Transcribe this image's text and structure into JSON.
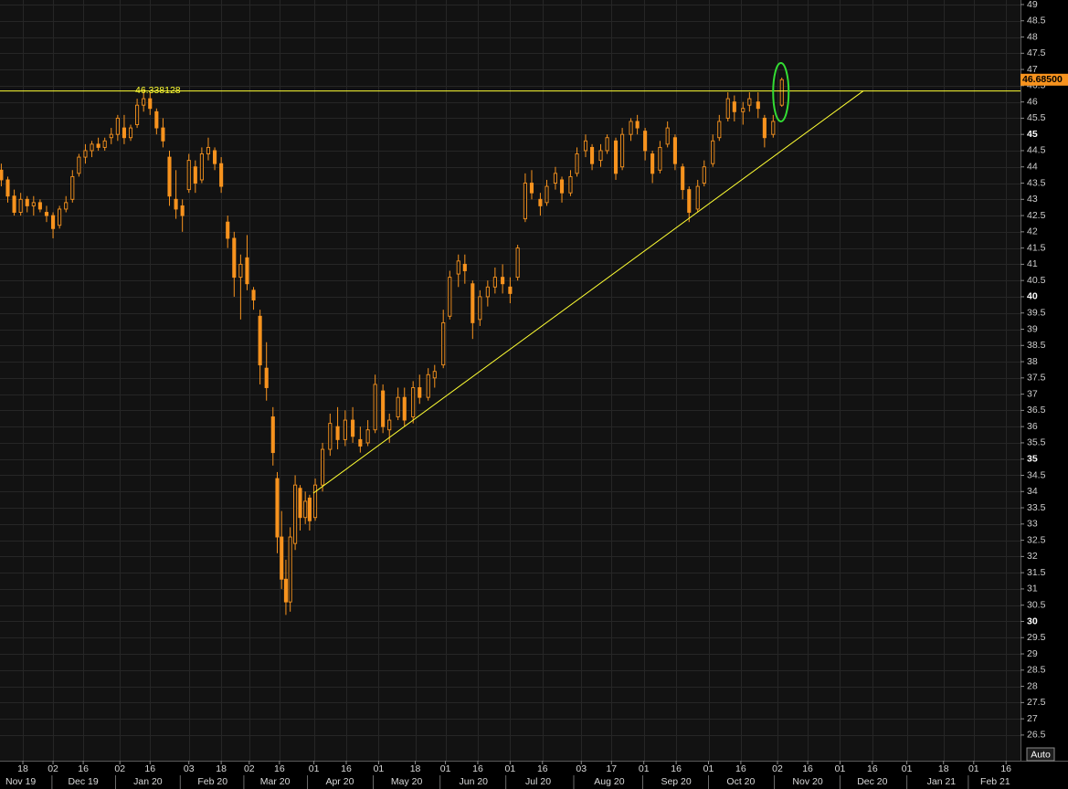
{
  "chart_data": {
    "type": "candlestick",
    "color": "#f7931e",
    "xlim": [
      6.4,
      479.7
    ],
    "ylim": [
      25.71,
      49.14
    ],
    "grid": true,
    "xticks": [
      {
        "value": 17,
        "label": "18"
      },
      {
        "value": 31,
        "label": "02"
      },
      {
        "value": 45,
        "label": "16"
      },
      {
        "value": 62,
        "label": "02"
      },
      {
        "value": 76,
        "label": "16"
      },
      {
        "value": 94,
        "label": "03"
      },
      {
        "value": 109,
        "label": "18"
      },
      {
        "value": 122,
        "label": "02"
      },
      {
        "value": 136,
        "label": "16"
      },
      {
        "value": 152,
        "label": "01"
      },
      {
        "value": 167,
        "label": "16"
      },
      {
        "value": 182,
        "label": "01"
      },
      {
        "value": 199,
        "label": "18"
      },
      {
        "value": 213,
        "label": "01"
      },
      {
        "value": 228,
        "label": "16"
      },
      {
        "value": 243,
        "label": "01"
      },
      {
        "value": 258,
        "label": "16"
      },
      {
        "value": 276,
        "label": "03"
      },
      {
        "value": 290,
        "label": "17"
      },
      {
        "value": 305,
        "label": "01"
      },
      {
        "value": 320,
        "label": "16"
      },
      {
        "value": 335,
        "label": "01"
      },
      {
        "value": 350,
        "label": "16"
      },
      {
        "value": 367,
        "label": "02"
      },
      {
        "value": 381,
        "label": "16"
      },
      {
        "value": 396,
        "label": "01"
      },
      {
        "value": 411,
        "label": "16"
      },
      {
        "value": 427,
        "label": "01"
      },
      {
        "value": 444,
        "label": "18"
      },
      {
        "value": 458,
        "label": "01"
      },
      {
        "value": 473,
        "label": "16"
      }
    ],
    "xticks_months": [
      {
        "value": 16,
        "label": "Nov 19"
      },
      {
        "value": 45,
        "label": "Dec 19"
      },
      {
        "value": 75,
        "label": "Jan 20"
      },
      {
        "value": 105,
        "label": "Feb 20"
      },
      {
        "value": 134,
        "label": "Mar 20"
      },
      {
        "value": 164,
        "label": "Apr 20"
      },
      {
        "value": 195,
        "label": "May 20"
      },
      {
        "value": 226,
        "label": "Jun 20"
      },
      {
        "value": 256,
        "label": "Jul 20"
      },
      {
        "value": 289,
        "label": "Aug 20"
      },
      {
        "value": 320,
        "label": "Sep 20"
      },
      {
        "value": 350,
        "label": "Oct 20"
      },
      {
        "value": 381,
        "label": "Nov 20"
      },
      {
        "value": 411,
        "label": "Dec 20"
      },
      {
        "value": 443,
        "label": "Jan 21"
      },
      {
        "value": 468,
        "label": "Feb 21"
      }
    ],
    "yticks": [
      26.5,
      27,
      27.5,
      28,
      28.5,
      29,
      29.5,
      30,
      30.5,
      31,
      31.5,
      32,
      32.5,
      33,
      33.5,
      34,
      34.5,
      35,
      35.5,
      36,
      36.5,
      37,
      37.5,
      38,
      38.5,
      39,
      39.5,
      40,
      40.5,
      41,
      41.5,
      42,
      42.5,
      43,
      43.5,
      44,
      44.5,
      45,
      45.5,
      46,
      46.5,
      47,
      47.5,
      48,
      48.5,
      49
    ],
    "x": [
      7,
      10,
      13,
      16,
      19,
      22,
      25,
      28,
      31,
      34,
      37,
      40,
      43,
      46,
      49,
      52,
      55,
      58,
      61,
      64,
      67,
      70,
      73,
      76,
      79,
      82,
      85,
      88,
      91,
      94,
      97,
      100,
      103,
      106,
      109,
      112,
      115,
      118,
      121,
      124,
      127,
      130,
      133,
      135,
      137,
      139,
      141,
      143.3,
      145.6,
      148,
      150,
      152.6,
      156,
      159.5,
      163,
      166.5,
      170,
      173.5,
      177,
      180.4,
      184,
      187,
      191,
      194,
      198,
      201,
      205,
      208,
      212,
      215,
      219,
      222,
      225.6,
      229,
      232.6,
      236,
      239.5,
      243,
      246.5,
      250,
      253,
      257,
      260,
      264,
      267,
      271,
      274,
      278,
      281,
      285,
      288,
      292,
      295,
      299,
      302,
      305.6,
      309,
      312.5,
      316,
      319.5,
      323,
      326,
      330,
      333,
      337,
      340,
      344,
      347,
      351,
      354,
      358,
      361,
      365,
      369
    ],
    "open": [
      43.9,
      43.6,
      43.1,
      42.6,
      43.0,
      42.8,
      42.9,
      42.6,
      42.5,
      42.2,
      42.7,
      43.0,
      43.8,
      44.3,
      44.5,
      44.7,
      44.6,
      44.9,
      45.0,
      45.2,
      44.9,
      45.3,
      45.9,
      46.1,
      45.7,
      45.2,
      44.3,
      43.0,
      42.8,
      43.3,
      44.0,
      43.6,
      44.4,
      44.5,
      44.1,
      42.3,
      41.8,
      40.6,
      41.2,
      40.2,
      39.4,
      37.8,
      36.3,
      34.4,
      32.6,
      31.3,
      30.6,
      32.4,
      34.1,
      33.2,
      33.8,
      33.2,
      34.2,
      35.3,
      36.0,
      35.6,
      36.2,
      35.6,
      35.5,
      35.9,
      37.1,
      35.9,
      36.3,
      36.9,
      36.3,
      37.2,
      36.9,
      37.5,
      37.9,
      39.4,
      40.7,
      41.0,
      40.4,
      39.3,
      40.0,
      40.3,
      40.6,
      40.3,
      40.6,
      42.4,
      43.5,
      43.0,
      42.9,
      43.5,
      43.6,
      43.2,
      43.8,
      44.5,
      44.6,
      44.2,
      44.5,
      44.8,
      44.0,
      45.0,
      45.4,
      45.1,
      44.4,
      43.9,
      44.7,
      44.9,
      44.0,
      43.3,
      42.7,
      43.5,
      44.1,
      44.9,
      45.5,
      46.0,
      45.7,
      45.9,
      46.0,
      45.5,
      45.0,
      45.9
    ],
    "high": [
      44.1,
      43.7,
      43.3,
      43.2,
      43.1,
      43.1,
      43.0,
      42.8,
      42.6,
      42.8,
      43.1,
      43.9,
      44.4,
      44.7,
      44.8,
      44.9,
      44.9,
      45.2,
      45.6,
      45.6,
      45.3,
      46.1,
      46.4,
      46.3,
      45.8,
      45.5,
      44.5,
      43.9,
      43.0,
      44.4,
      44.2,
      44.6,
      44.9,
      44.6,
      44.3,
      42.5,
      42.0,
      41.3,
      41.9,
      40.3,
      39.6,
      38.6,
      36.6,
      34.6,
      33.4,
      31.9,
      32.9,
      34.5,
      34.2,
      34.0,
      33.9,
      34.4,
      35.5,
      36.4,
      36.6,
      36.5,
      36.6,
      36.0,
      36.2,
      37.6,
      37.3,
      36.4,
      37.2,
      37.2,
      37.4,
      37.6,
      37.8,
      37.9,
      39.6,
      40.8,
      41.3,
      41.3,
      40.5,
      40.2,
      40.5,
      40.9,
      41.0,
      40.6,
      41.6,
      43.8,
      43.9,
      43.2,
      43.6,
      44.0,
      43.7,
      43.9,
      44.6,
      45.0,
      44.7,
      44.7,
      45.0,
      44.9,
      45.2,
      45.5,
      45.6,
      45.2,
      44.5,
      44.8,
      45.4,
      45.0,
      44.1,
      43.4,
      43.6,
      44.2,
      45.0,
      45.6,
      46.3,
      46.2,
      46.0,
      46.3,
      46.3,
      45.6,
      45.6,
      46.75
    ],
    "low": [
      43.4,
      42.9,
      42.5,
      42.5,
      42.6,
      42.5,
      42.6,
      42.3,
      41.8,
      42.1,
      42.6,
      42.9,
      43.7,
      44.1,
      44.3,
      44.5,
      44.5,
      44.7,
      44.8,
      44.7,
      44.8,
      45.2,
      45.7,
      45.6,
      45.0,
      44.6,
      42.8,
      42.4,
      42.0,
      43.2,
      43.2,
      43.5,
      44.2,
      43.9,
      43.2,
      41.5,
      40.0,
      39.3,
      40.2,
      39.6,
      37.3,
      36.8,
      34.8,
      32.1,
      31.0,
      30.2,
      30.3,
      32.2,
      32.8,
      33.0,
      32.8,
      33.1,
      34.0,
      35.1,
      35.3,
      35.4,
      35.5,
      35.2,
      35.4,
      35.8,
      35.8,
      35.5,
      36.2,
      36.0,
      36.1,
      36.7,
      36.8,
      37.2,
      37.8,
      39.3,
      40.3,
      40.4,
      38.7,
      39.1,
      39.7,
      40.1,
      40.1,
      39.8,
      40.5,
      42.3,
      43.0,
      42.5,
      42.8,
      43.3,
      42.9,
      43.1,
      43.7,
      44.3,
      43.9,
      44.0,
      44.4,
      43.6,
      43.9,
      44.8,
      45.0,
      44.2,
      43.5,
      43.8,
      44.6,
      43.9,
      43.0,
      42.3,
      42.6,
      43.4,
      44.0,
      44.8,
      45.4,
      45.4,
      45.3,
      45.7,
      45.5,
      44.6,
      44.9,
      45.85
    ],
    "close": [
      43.6,
      43.1,
      42.6,
      43.0,
      42.8,
      42.9,
      42.7,
      42.5,
      42.1,
      42.7,
      42.9,
      43.7,
      44.3,
      44.5,
      44.7,
      44.6,
      44.8,
      45.0,
      45.5,
      44.9,
      45.2,
      45.9,
      46.1,
      45.8,
      45.2,
      44.8,
      43.1,
      42.7,
      42.5,
      44.2,
      43.5,
      44.4,
      44.6,
      44.1,
      43.4,
      41.8,
      40.6,
      41.0,
      40.4,
      39.9,
      37.9,
      37.2,
      35.2,
      32.6,
      31.3,
      30.6,
      32.6,
      34.2,
      33.2,
      33.7,
      33.1,
      34.2,
      35.3,
      36.1,
      35.6,
      36.2,
      35.7,
      35.4,
      35.9,
      37.3,
      36.0,
      36.2,
      36.9,
      36.2,
      37.2,
      36.9,
      37.6,
      37.7,
      39.2,
      40.6,
      41.1,
      40.8,
      39.2,
      40.0,
      40.3,
      40.6,
      40.4,
      40.1,
      41.5,
      43.5,
      43.2,
      42.8,
      43.4,
      43.8,
      43.2,
      43.7,
      44.4,
      44.8,
      44.1,
      44.5,
      44.9,
      43.8,
      45.0,
      45.4,
      45.2,
      44.5,
      43.8,
      44.6,
      45.2,
      44.1,
      43.3,
      42.6,
      43.4,
      44.0,
      44.8,
      45.4,
      46.1,
      45.7,
      45.8,
      46.1,
      45.8,
      44.9,
      45.4,
      46.685
    ],
    "reference_line": {
      "value": 46.338128,
      "color": "#ffff33"
    },
    "last_price": {
      "value": 46.685,
      "label": "46.68500"
    },
    "trendline": {
      "x": [
        151.7,
        406.8
      ],
      "y": [
        33.95,
        46.34
      ],
      "color": "#ffff33"
    }
  },
  "controls": {
    "auto_button": "Auto"
  }
}
